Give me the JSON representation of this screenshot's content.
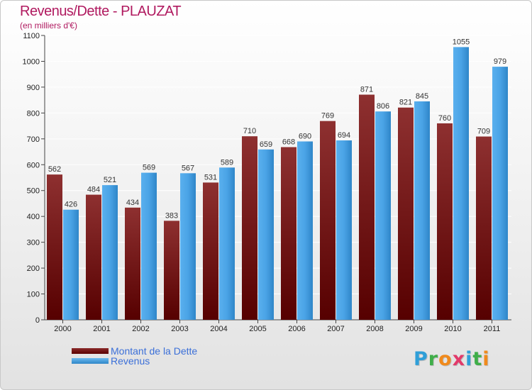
{
  "title": "Revenus/Dette - PLAUZAT",
  "subtitle": "(en milliers d'€)",
  "legend": [
    {
      "label": "Montant de la Dette",
      "color": "#6b0f0f"
    },
    {
      "label": "Revenus",
      "color": "#4aa3e6"
    }
  ],
  "logo": {
    "text": "Proxiti",
    "letters": [
      {
        "ch": "P",
        "color": "#2f9fd8"
      },
      {
        "ch": "r",
        "color": "#3fae49"
      },
      {
        "ch": "o",
        "color": "#f08a1c"
      },
      {
        "ch": "x",
        "color": "#e23a6a"
      },
      {
        "ch": "i",
        "color": "#2f9fd8"
      },
      {
        "ch": "t",
        "color": "#3fae49"
      },
      {
        "ch": "i",
        "color": "#f08a1c"
      }
    ]
  },
  "chart_data": {
    "type": "bar",
    "categories": [
      "2000",
      "2001",
      "2002",
      "2003",
      "2004",
      "2005",
      "2006",
      "2007",
      "2008",
      "2009",
      "2010",
      "2011"
    ],
    "series": [
      {
        "name": "Montant de la Dette",
        "values": [
          562,
          484,
          434,
          383,
          531,
          710,
          668,
          769,
          871,
          821,
          760,
          709
        ]
      },
      {
        "name": "Revenus",
        "values": [
          426,
          521,
          569,
          567,
          589,
          659,
          690,
          694,
          806,
          845,
          1055,
          979
        ]
      }
    ],
    "ylim": [
      0,
      1100
    ],
    "yticks": [
      0,
      100,
      200,
      300,
      400,
      500,
      600,
      700,
      800,
      900,
      1000,
      1100
    ],
    "grid": true,
    "legend_position": "bottom-left"
  }
}
